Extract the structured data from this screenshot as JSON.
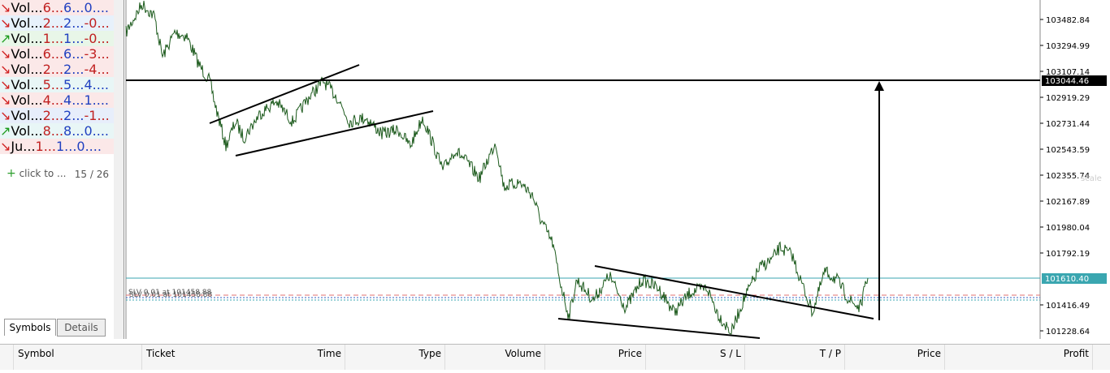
{
  "market_watch": {
    "rows": [
      {
        "dir": "down",
        "symbol": "Vol...",
        "bid": "6...",
        "ask": "6...",
        "change": "0...."
      },
      {
        "dir": "down",
        "symbol": "Vol...",
        "bid": "2...",
        "ask": "2...",
        "change": "-0..."
      },
      {
        "dir": "up",
        "symbol": "Vol...",
        "bid": "1...",
        "ask": "1...",
        "change": "-0..."
      },
      {
        "dir": "down",
        "symbol": "Vol...",
        "bid": "6...",
        "ask": "6...",
        "change": "-3..."
      },
      {
        "dir": "down",
        "symbol": "Vol...",
        "bid": "2...",
        "ask": "2...",
        "change": "-4..."
      },
      {
        "dir": "down",
        "symbol": "Vol...",
        "bid": "5...",
        "ask": "5...",
        "change": "4...."
      },
      {
        "dir": "down",
        "symbol": "Vol...",
        "bid": "4...",
        "ask": "4...",
        "change": "1...."
      },
      {
        "dir": "down",
        "symbol": "Vol...",
        "bid": "2...",
        "ask": "2...",
        "change": "-1..."
      },
      {
        "dir": "up",
        "symbol": "Vol...",
        "bid": "8...",
        "ask": "8...",
        "change": "0...."
      },
      {
        "dir": "down",
        "symbol": "Ju...",
        "bid": "1...",
        "ask": "1...",
        "change": "0...."
      }
    ],
    "add_symbol": "click to ...",
    "count": "15 / 26",
    "tabs": [
      "Symbols",
      "Details"
    ]
  },
  "price_axis": {
    "labels": [
      "103482.84",
      "103294.99",
      "103107.14",
      "102919.29",
      "102731.44",
      "102543.59",
      "102355.74",
      "102167.89",
      "101980.04",
      "101792.19",
      "101416.49",
      "101228.64"
    ],
    "highlight_line": "103044.46",
    "current_price": "101610.40",
    "scale_hint": "scale"
  },
  "chart": {
    "order_label": "SLV 0.01 at 101458.88"
  },
  "trade_table": {
    "columns": [
      "Symbol",
      "Ticket",
      "Time",
      "Type",
      "Volume",
      "Price",
      "S / L",
      "T / P",
      "Price",
      "Profit"
    ]
  }
}
